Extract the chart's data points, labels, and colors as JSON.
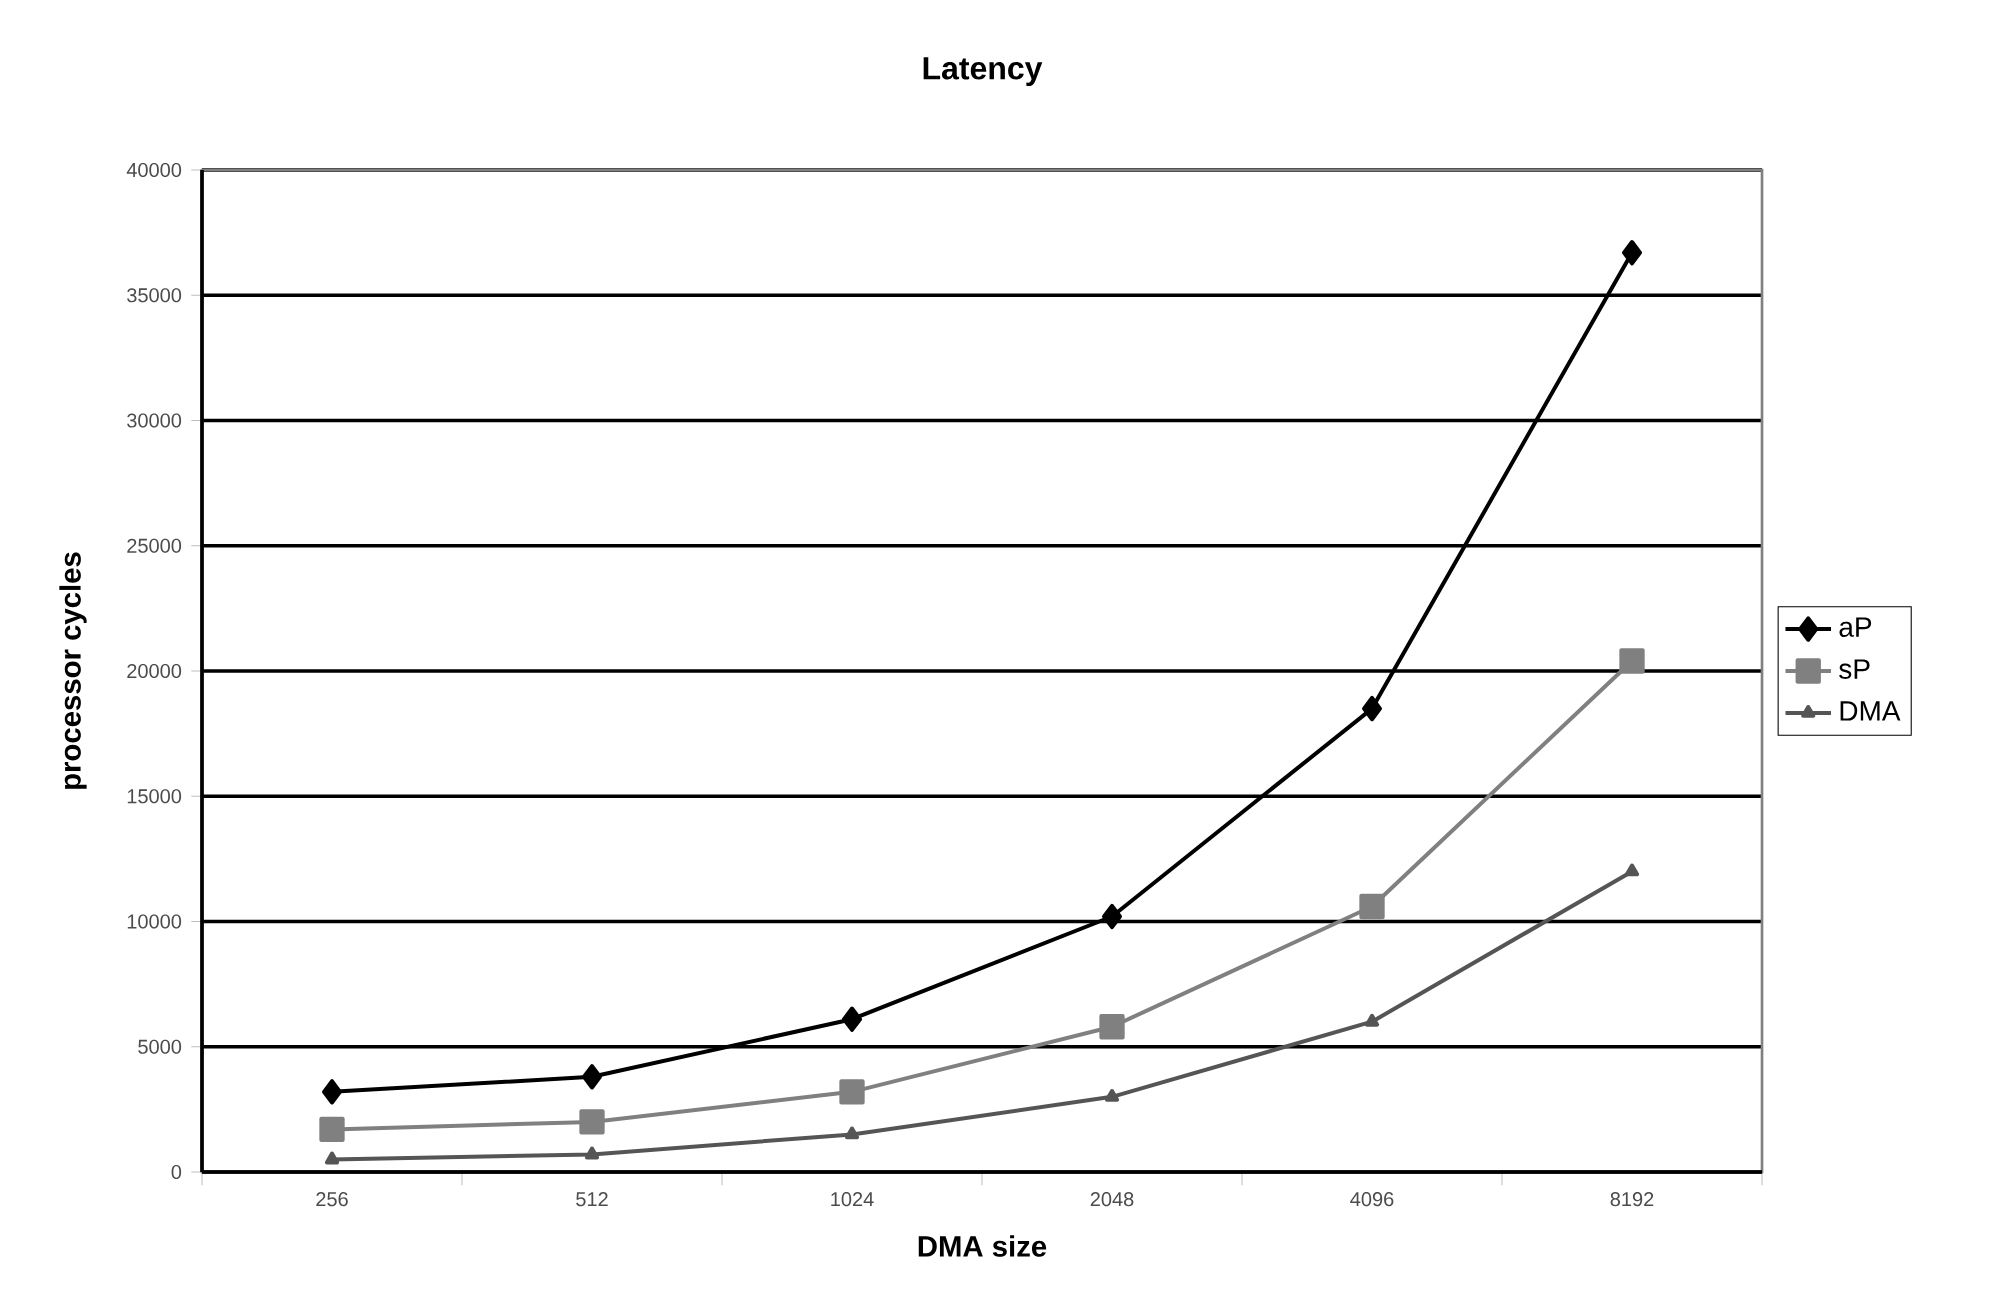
{
  "chart_data": {
    "type": "line",
    "title": "Latency",
    "xlabel": "DMA size",
    "ylabel": "processor cycles",
    "categories": [
      "256",
      "512",
      "1024",
      "2048",
      "4096",
      "8192"
    ],
    "series": [
      {
        "name": "aP",
        "color": "#000000",
        "marker": "diamond",
        "values": [
          3200,
          3800,
          6100,
          10200,
          18500,
          36700
        ]
      },
      {
        "name": "sP",
        "color": "#808080",
        "marker": "square",
        "values": [
          1700,
          2000,
          3200,
          5800,
          10600,
          20400
        ]
      },
      {
        "name": "DMA",
        "color": "#555555",
        "marker": "triangle",
        "values": [
          500,
          700,
          1500,
          3000,
          6000,
          12000
        ]
      }
    ],
    "ylim": [
      0,
      40000
    ],
    "yticks": [
      0,
      5000,
      10000,
      15000,
      20000,
      25000,
      30000,
      35000,
      40000
    ],
    "grid": "y",
    "legend": "right"
  }
}
